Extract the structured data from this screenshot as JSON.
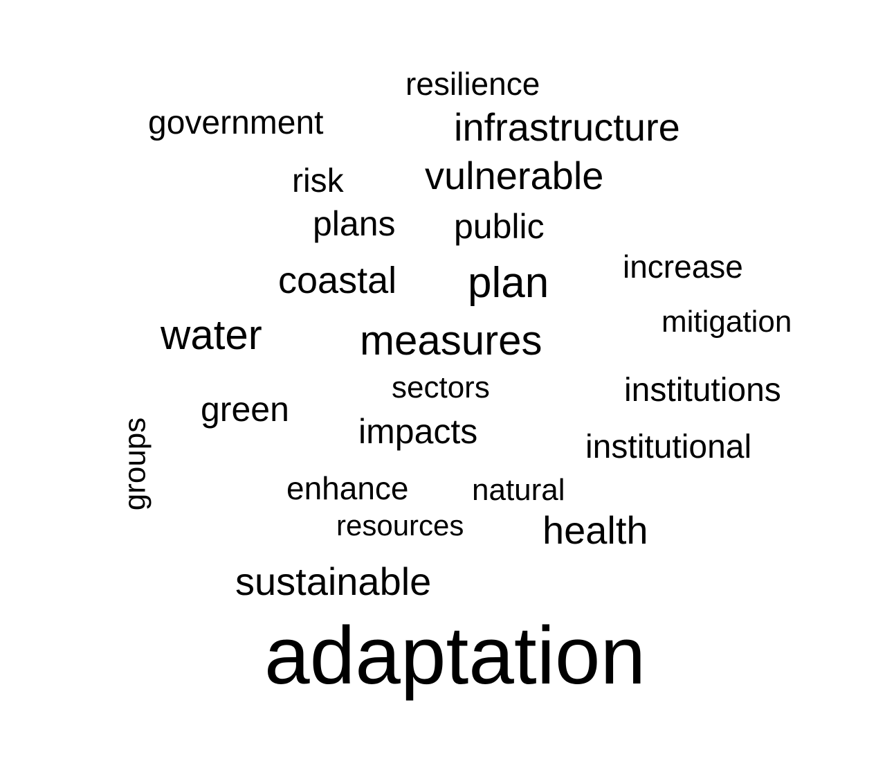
{
  "word_cloud": {
    "words": {
      "resilience": "resilience",
      "government": "government",
      "infrastructure": "infrastructure",
      "risk": "risk",
      "vulnerable": "vulnerable",
      "plans": "plans",
      "public": "public",
      "increase": "increase",
      "coastal": "coastal",
      "plan": "plan",
      "mitigation": "mitigation",
      "water": "water",
      "measures": "measures",
      "sectors": "sectors",
      "institutions": "institutions",
      "green": "green",
      "impacts": "impacts",
      "institutional": "institutional",
      "groups": "groups",
      "enhance": "enhance",
      "natural": "natural",
      "resources": "resources",
      "health": "health",
      "sustainable": "sustainable",
      "adaptation": "adaptation"
    },
    "text_color": "#000000",
    "background_color": "#ffffff"
  }
}
